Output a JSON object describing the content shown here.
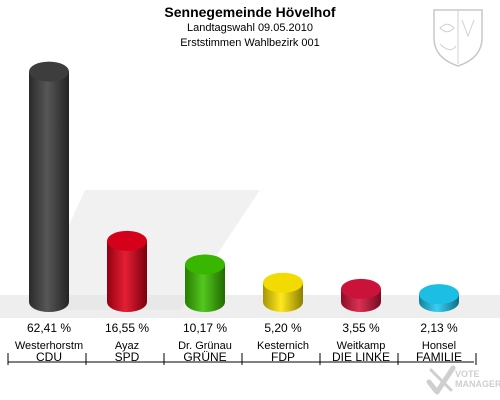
{
  "header": {
    "title": "Sennegemeinde Hövelhof",
    "subtitle_1": "Landtagswahl 09.05.2010",
    "subtitle_2": "Erststimmen Wahlbezirk 001"
  },
  "watermark": {
    "text_1": "VOTE",
    "text_2": "MANAGER"
  },
  "chart_data": {
    "type": "bar",
    "title": "Sennegemeinde Hövelhof",
    "subtitle": "Landtagswahl 09.05.2010 — Erststimmen Wahlbezirk 001",
    "categories": [
      "CDU",
      "SPD",
      "GRÜNE",
      "FDP",
      "DIE LINKE",
      "FAMILIE"
    ],
    "candidates": [
      "Westerhorstm",
      "Ayaz",
      "Dr. Grünau",
      "Kesternich",
      "Weitkamp",
      "Honsel"
    ],
    "values": [
      62.41,
      16.55,
      10.17,
      5.2,
      3.55,
      2.13
    ],
    "value_labels": [
      "62,41 %",
      "16,55 %",
      "10,17 %",
      "5,20 %",
      "3,55 %",
      "2,13 %"
    ],
    "colors": [
      "#404040",
      "#e0001a",
      "#3cc000",
      "#ffe600",
      "#d6143c",
      "#1ec8f0"
    ],
    "ylim": [
      0,
      65
    ],
    "grid": false,
    "legend": "none"
  }
}
